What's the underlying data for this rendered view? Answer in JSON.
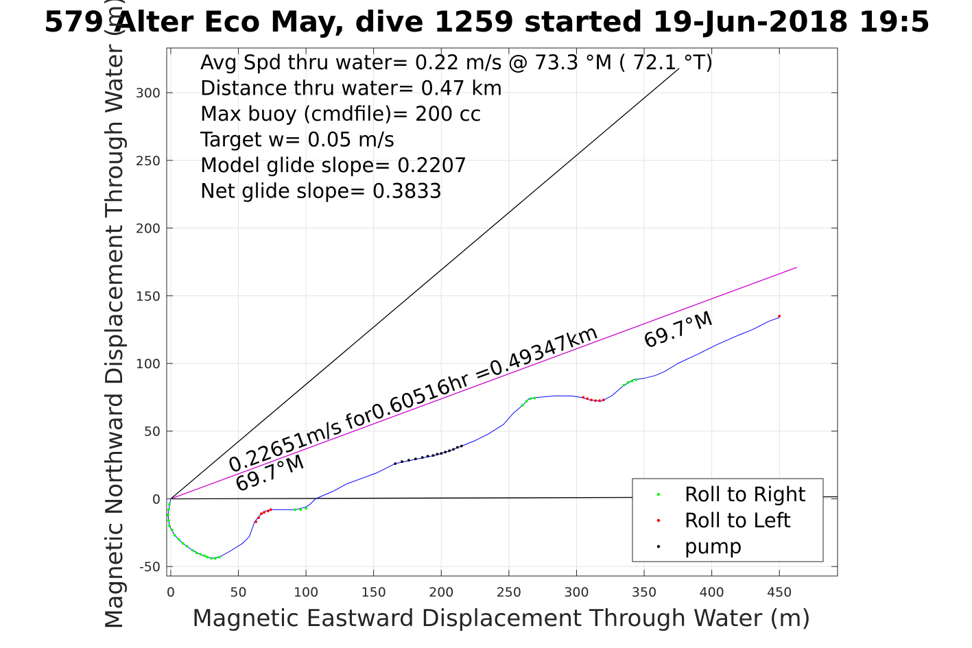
{
  "chart_data": {
    "type": "line",
    "title": "579 Alter Eco May, dive 1259 started 19-Jun-2018 19:5",
    "xlabel": "Magnetic Eastward Displacement Through Water (m)",
    "ylabel": "Magnetic Northward Displacement Through Water (m)",
    "xlim": [
      -3,
      493
    ],
    "ylim": [
      -57,
      333
    ],
    "xticks": [
      0,
      50,
      100,
      150,
      200,
      250,
      300,
      350,
      400,
      450
    ],
    "yticks": [
      -50,
      0,
      50,
      100,
      150,
      200,
      250,
      300
    ],
    "grid": true,
    "info_lines": [
      "Avg Spd thru water=  0.22 m/s @  73.3 °M ( 72.1 °T)",
      "Distance thru water=  0.47 km",
      "Max buoy (cmdfile)= 200 cc",
      "Target w= 0.05 m/s",
      "Model glide slope= 0.2207",
      "Net glide slope= 0.3833"
    ],
    "annotations": [
      {
        "text": "0.22651m/s for0.60516hr =0.49347km",
        "x": 45,
        "y": 19,
        "angle": 20.3
      },
      {
        "text": "69.7°M",
        "x": 50,
        "y": 5,
        "angle": 20.3
      },
      {
        "text": "69.7°M",
        "x": 352,
        "y": 111,
        "angle": 20.3
      }
    ],
    "ref_lines": [
      {
        "name": "heading-line",
        "color": "#000000",
        "points": [
          [
            0,
            0
          ],
          [
            376,
            318
          ]
        ]
      },
      {
        "name": "current-line",
        "color": "#000000",
        "points": [
          [
            0,
            0
          ],
          [
            493,
            1.5
          ]
        ]
      },
      {
        "name": "glide-line",
        "color": "#cc00cc",
        "points": [
          [
            0,
            0
          ],
          [
            463,
            171
          ]
        ]
      }
    ],
    "track": {
      "color": "#0000ff",
      "points": [
        [
          0,
          0
        ],
        [
          -1,
          -5
        ],
        [
          -2,
          -12
        ],
        [
          -1,
          -20
        ],
        [
          3,
          -27
        ],
        [
          9,
          -33
        ],
        [
          16,
          -38
        ],
        [
          24,
          -42
        ],
        [
          30,
          -44
        ],
        [
          36,
          -43
        ],
        [
          45,
          -38
        ],
        [
          53,
          -33
        ],
        [
          58,
          -28
        ],
        [
          62,
          -17
        ],
        [
          66,
          -12
        ],
        [
          70,
          -9
        ],
        [
          75,
          -8
        ],
        [
          92,
          -8
        ],
        [
          100,
          -6
        ],
        [
          103,
          -4
        ],
        [
          107,
          0
        ],
        [
          114,
          3
        ],
        [
          121,
          6
        ],
        [
          130,
          11
        ],
        [
          141,
          15
        ],
        [
          152,
          19
        ],
        [
          166,
          26
        ],
        [
          180,
          29
        ],
        [
          195,
          32
        ],
        [
          205,
          35
        ],
        [
          215,
          39
        ],
        [
          225,
          43
        ],
        [
          235,
          48
        ],
        [
          246,
          55
        ],
        [
          253,
          63
        ],
        [
          260,
          69
        ],
        [
          265,
          74
        ],
        [
          272,
          75
        ],
        [
          284,
          76
        ],
        [
          296,
          76
        ],
        [
          303,
          75
        ],
        [
          310,
          73
        ],
        [
          318,
          72
        ],
        [
          326,
          76
        ],
        [
          334,
          83
        ],
        [
          342,
          88
        ],
        [
          350,
          89
        ],
        [
          358,
          91
        ],
        [
          365,
          94
        ],
        [
          375,
          100
        ],
        [
          390,
          107
        ],
        [
          404,
          114
        ],
        [
          420,
          121
        ],
        [
          430,
          125
        ],
        [
          442,
          131
        ],
        [
          450,
          134
        ]
      ]
    },
    "series": [
      {
        "name": "Roll to Right",
        "color": "#00ff00",
        "points": [
          [
            -1,
            -4
          ],
          [
            -1.5,
            -8
          ],
          [
            -2,
            -12
          ],
          [
            -1.5,
            -16
          ],
          [
            -1,
            -20
          ],
          [
            1,
            -23
          ],
          [
            3,
            -27
          ],
          [
            6,
            -30
          ],
          [
            9,
            -33
          ],
          [
            12,
            -35
          ],
          [
            16,
            -38
          ],
          [
            19,
            -40
          ],
          [
            22,
            -41
          ],
          [
            25,
            -42
          ],
          [
            27,
            -43
          ],
          [
            30,
            -44
          ],
          [
            33,
            -44
          ],
          [
            36,
            -43
          ],
          [
            92,
            -8
          ],
          [
            96,
            -8
          ],
          [
            100,
            -7
          ],
          [
            260,
            69
          ],
          [
            263,
            72
          ],
          [
            266,
            74
          ],
          [
            269,
            74.5
          ],
          [
            335,
            84
          ],
          [
            338,
            86
          ],
          [
            341,
            87
          ],
          [
            344,
            88
          ]
        ]
      },
      {
        "name": "Roll to Left",
        "color": "#ff0000",
        "points": [
          [
            63,
            -17
          ],
          [
            65,
            -14
          ],
          [
            67,
            -11
          ],
          [
            69,
            -10
          ],
          [
            72,
            -9
          ],
          [
            74,
            -8
          ],
          [
            305,
            75
          ],
          [
            308,
            74
          ],
          [
            311,
            73
          ],
          [
            314,
            72.5
          ],
          [
            317,
            72.5
          ],
          [
            320,
            73
          ],
          [
            450,
            135
          ]
        ]
      },
      {
        "name": "pump",
        "color": "#000000",
        "points": [
          [
            166,
            26
          ],
          [
            171,
            27.5
          ],
          [
            176,
            28.5
          ],
          [
            181,
            29.5
          ],
          [
            186,
            30.5
          ],
          [
            190,
            31.5
          ],
          [
            194,
            32
          ],
          [
            197,
            33
          ],
          [
            200,
            33.5
          ],
          [
            203,
            34.5
          ],
          [
            206,
            35.5
          ],
          [
            209,
            36.5
          ],
          [
            212,
            38
          ],
          [
            215,
            39
          ]
        ]
      }
    ],
    "legend": {
      "placement": "bottom-right",
      "entries": [
        "Roll to Right",
        "Roll to Left",
        "pump"
      ]
    }
  }
}
